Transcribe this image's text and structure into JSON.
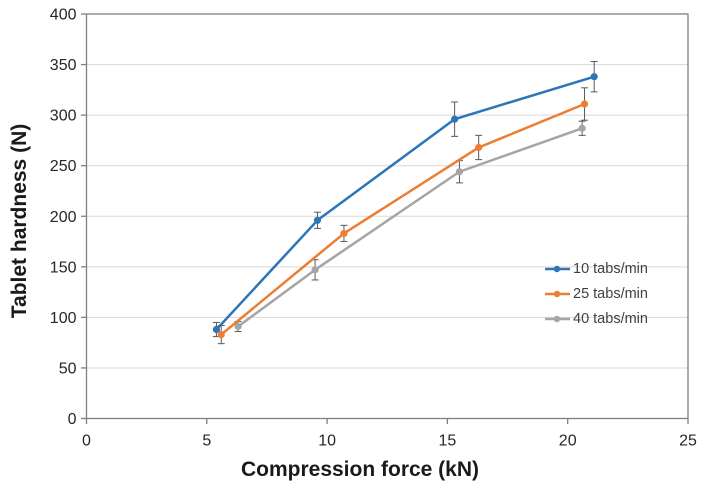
{
  "figure": {
    "background": "#FFFFFF",
    "plot_border_color": "#7F7F7F",
    "gridline_color": "#D9D9D9",
    "tick_color": "#7F7F7F",
    "tick_label_color": "#262626",
    "axis_title_color": "#1A1A1A",
    "legend_text_color": "#404040",
    "error_bar_color": "#595959"
  },
  "chart_data": {
    "type": "line",
    "title": "",
    "xlabel": "Compression force (kN)",
    "ylabel": "Tablet hardness (N)",
    "xlim": [
      0,
      25
    ],
    "ylim": [
      0,
      400
    ],
    "x_ticks": [
      "0",
      "5",
      "10",
      "15",
      "20",
      "25"
    ],
    "y_ticks": [
      "0",
      "50",
      "100",
      "150",
      "200",
      "250",
      "300",
      "350",
      "400"
    ],
    "grid": "horizontal gridlines at every 50 N",
    "legend_position": "inside right",
    "marker": "circle",
    "error_bars": "vertical, both directions, with caps",
    "series": [
      {
        "name": "10 tabs/min",
        "color": "#2E75B6",
        "x": [
          5.4,
          9.6,
          15.3,
          21.1
        ],
        "y": [
          88,
          196,
          296,
          338
        ],
        "y_err": [
          7,
          8,
          17,
          15
        ]
      },
      {
        "name": "25 tabs/min",
        "color": "#ED7D31",
        "x": [
          5.6,
          10.7,
          16.3,
          20.7
        ],
        "y": [
          83,
          183,
          268,
          311
        ],
        "y_err": [
          9,
          8,
          12,
          16
        ]
      },
      {
        "name": "40 tabs/min",
        "color": "#A5A5A5",
        "x": [
          6.3,
          9.5,
          15.5,
          20.6
        ],
        "y": [
          91,
          147,
          244,
          287
        ],
        "y_err": [
          5,
          10,
          11,
          7
        ]
      }
    ]
  }
}
